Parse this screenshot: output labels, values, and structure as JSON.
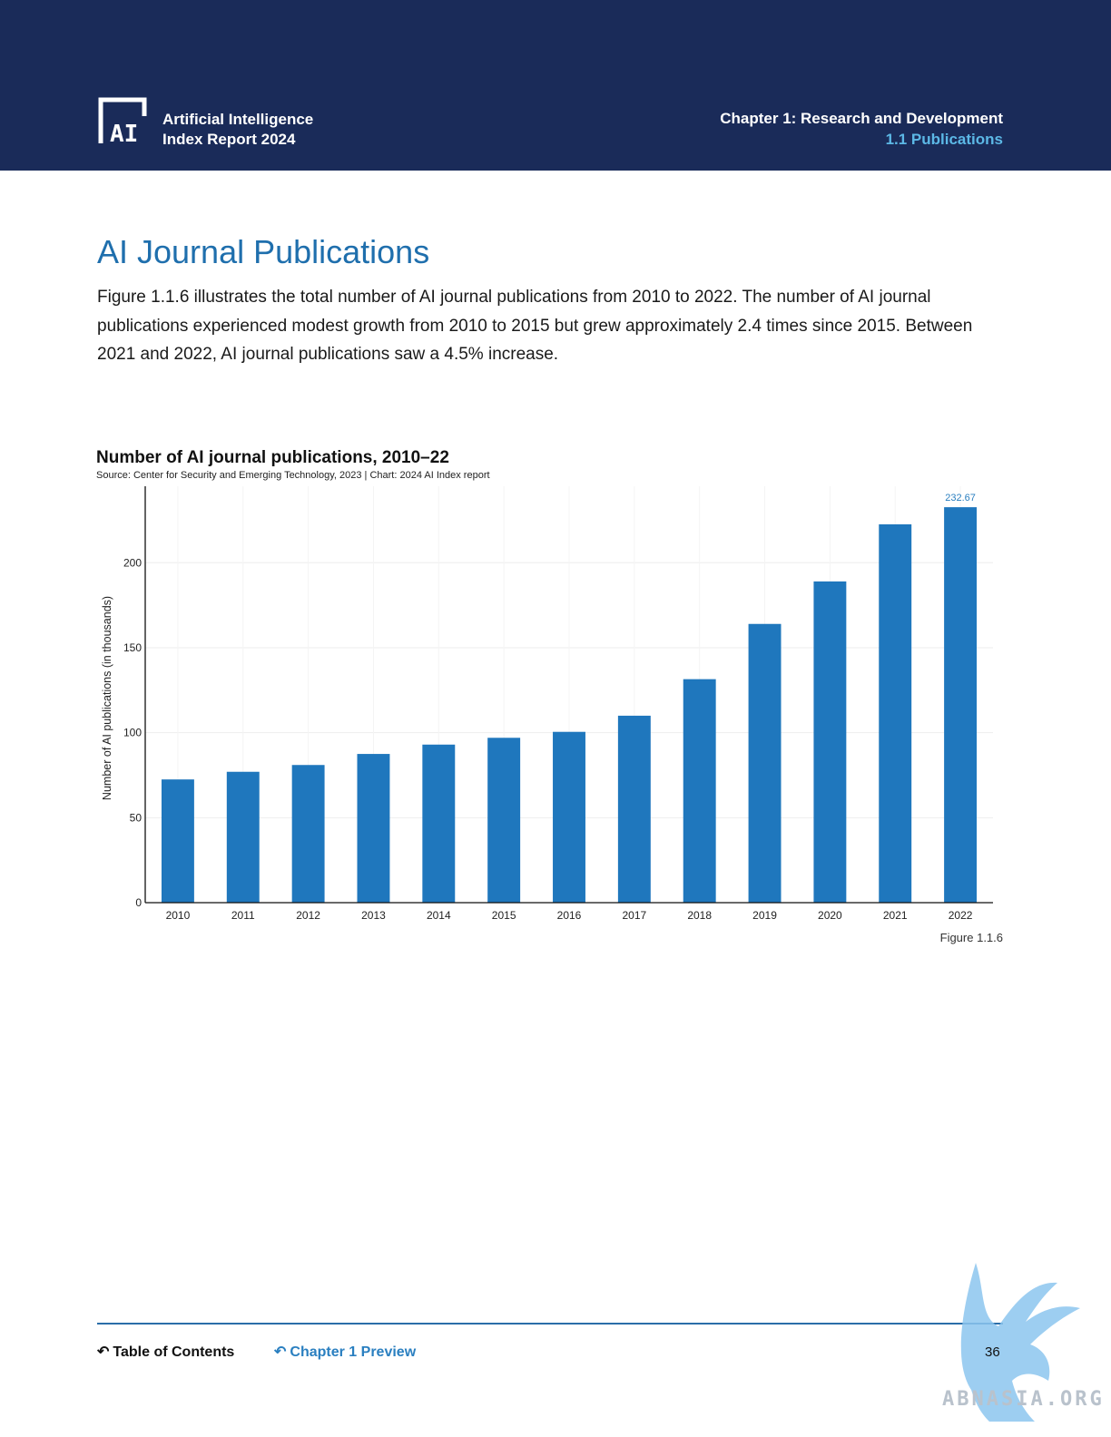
{
  "header": {
    "brand_line1": "Artificial Intelligence",
    "brand_line2": "Index Report 2024",
    "chapter": "Chapter 1: Research and Development",
    "section": "1.1 Publications"
  },
  "page": {
    "title": "AI Journal Publications",
    "intro": "Figure 1.1.6 illustrates the total number of AI journal publications from 2010 to 2022. The number of AI journal publications experienced modest growth from 2010 to 2015 but grew approximately 2.4 times since 2015. Between 2021 and 2022, AI journal publications saw a 4.5% increase.",
    "figure_label": "Figure 1.1.6"
  },
  "chart_data": {
    "type": "bar",
    "title": "Number of AI journal publications, 2010–22",
    "source": "Source: Center for Security and Emerging Technology, 2023 | Chart: 2024 AI Index report",
    "xlabel": "",
    "ylabel": "Number of AI publications (in thousands)",
    "categories": [
      "2010",
      "2011",
      "2012",
      "2013",
      "2014",
      "2015",
      "2016",
      "2017",
      "2018",
      "2019",
      "2020",
      "2021",
      "2022"
    ],
    "values": [
      72.5,
      77,
      81,
      87.5,
      93,
      97,
      100.5,
      110,
      131.5,
      164,
      189,
      222.6,
      232.67
    ],
    "data_labels": [
      {
        "category": "2022",
        "text": "232.67"
      }
    ],
    "yticks": [
      0,
      50,
      100,
      150,
      200
    ],
    "ylim": [
      0,
      245
    ],
    "grid": true,
    "legend": "none",
    "bar_color": "#1f77bd",
    "label_color": "#2a7fc0"
  },
  "footer": {
    "toc": "Table of Contents",
    "chapter_preview": "Chapter 1 Preview",
    "page_number": "36"
  },
  "watermark": {
    "text": "ABNASIA.ORG"
  }
}
